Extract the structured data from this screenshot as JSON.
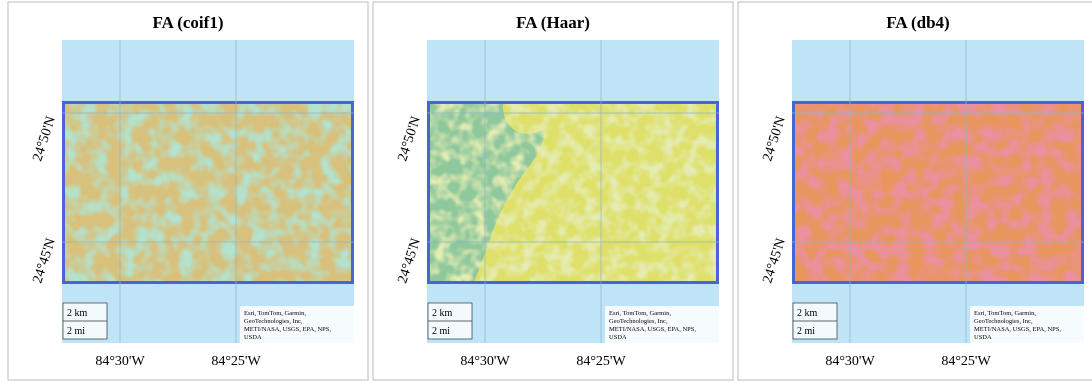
{
  "panels": [
    {
      "title": "FA (coif1)",
      "lat_labels": [
        "24°50'N",
        "24°45'N"
      ],
      "lon_labels": [
        "84°30'W",
        "84°25'W"
      ],
      "scale_labels": [
        "2 km",
        "2 mi"
      ],
      "attribution": [
        "Esri, TomTom, Garmin,",
        "GeoTechnologies, Inc,",
        "METI/NASA, USGS, EPA, NPS,",
        "USDA"
      ]
    },
    {
      "title": "FA (Haar)",
      "lat_labels": [
        "24°50'N",
        "24°45'N"
      ],
      "lon_labels": [
        "84°30'W",
        "84°25'W"
      ],
      "scale_labels": [
        "2 km",
        "2 mi"
      ],
      "attribution": [
        "Esri, TomTom, Garmin,",
        "GeoTechnologies, Inc,",
        "METI/NASA, USGS, EPA, NPS,",
        "USDA"
      ]
    },
    {
      "title": "FA (db4)",
      "lat_labels": [
        "24°50'N",
        "24°45'N"
      ],
      "lon_labels": [
        "84°30'W",
        "84°25'W"
      ],
      "scale_labels": [
        "2 km",
        "2 mi"
      ],
      "attribution": [
        "Esri, TomTom, Garmin,",
        "GeoTechnologies, Inc,",
        "METI/NASA, USGS, EPA, NPS,",
        "USDA"
      ]
    }
  ]
}
